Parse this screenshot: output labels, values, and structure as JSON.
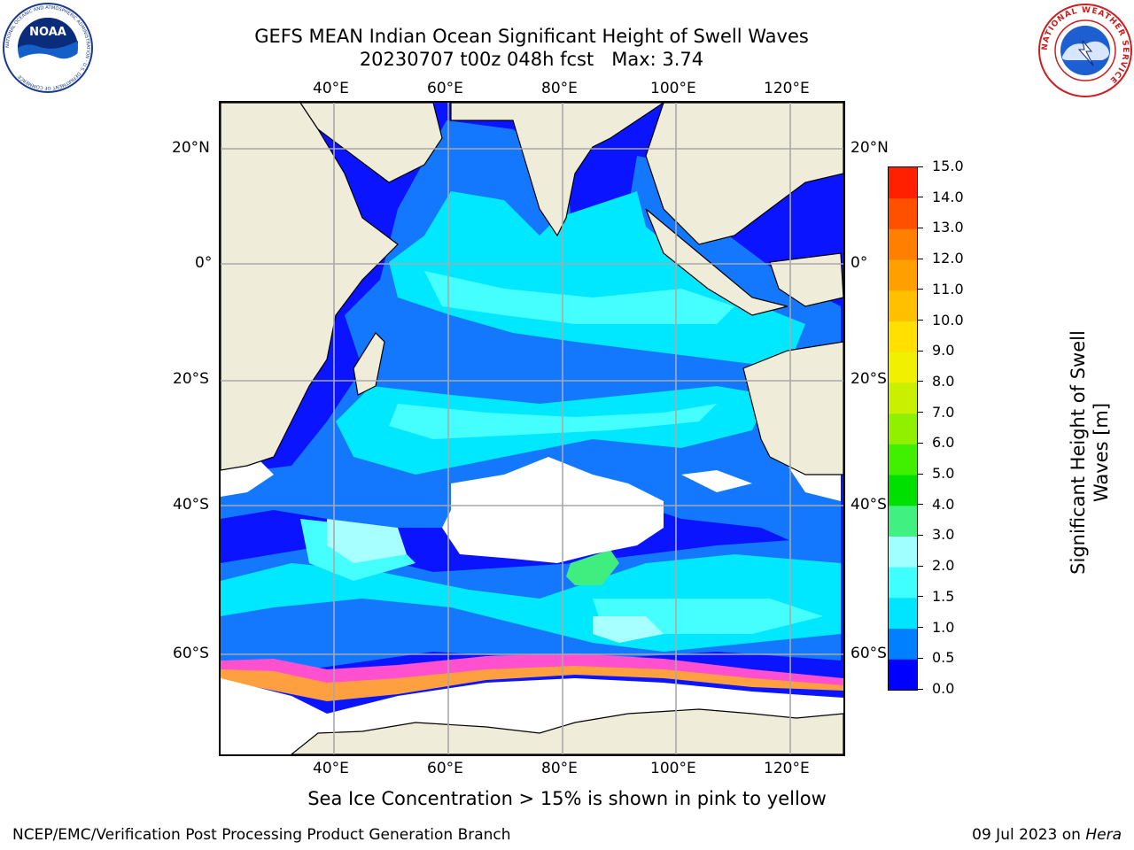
{
  "title": {
    "line1": "GEFS MEAN Indian Ocean Significant Height of Swell Waves",
    "line2": "20230707 t00z 048h fcst   Max: 3.74"
  },
  "logos": {
    "left_icon": "noaa-logo",
    "left_text": "NOAA",
    "left_ring": "NATIONAL OCEANIC AND ATMOSPHERIC ADMINISTRATION · U.S. DEPARTMENT OF COMMERCE",
    "right_icon": "nws-logo",
    "right_ring": "NATIONAL WEATHER SERVICE"
  },
  "map": {
    "lon_ticks": [
      "40°E",
      "60°E",
      "80°E",
      "100°E",
      "120°E"
    ],
    "lat_ticks": [
      "20°N",
      "0°",
      "20°S",
      "40°S",
      "60°S"
    ],
    "caption": "Sea Ice Concentration > 15% is shown in pink to yellow"
  },
  "colorbar": {
    "label_line1": "Significant Height of Swell",
    "label_line2": "Waves [m]",
    "ticks": [
      "0.0",
      "0.5",
      "1.0",
      "1.5",
      "2.0",
      "3.0",
      "4.0",
      "5.0",
      "6.0",
      "7.0",
      "8.0",
      "9.0",
      "10.0",
      "11.0",
      "12.0",
      "13.0",
      "14.0",
      "15.0"
    ],
    "colors": [
      "#0000ff",
      "#0080ff",
      "#00e5ff",
      "#40ffff",
      "#a0ffff",
      "#40f080",
      "#00e000",
      "#40f000",
      "#90f000",
      "#c8f000",
      "#f0f000",
      "#ffe000",
      "#ffc000",
      "#ffa000",
      "#ff8000",
      "#ff5000",
      "#ff2000",
      "#ff0000"
    ]
  },
  "footer": {
    "left": "NCEP/EMC/Verification Post Processing Product Generation Branch",
    "right_date": "09 Jul 2023 on ",
    "right_host": "Hera"
  }
}
